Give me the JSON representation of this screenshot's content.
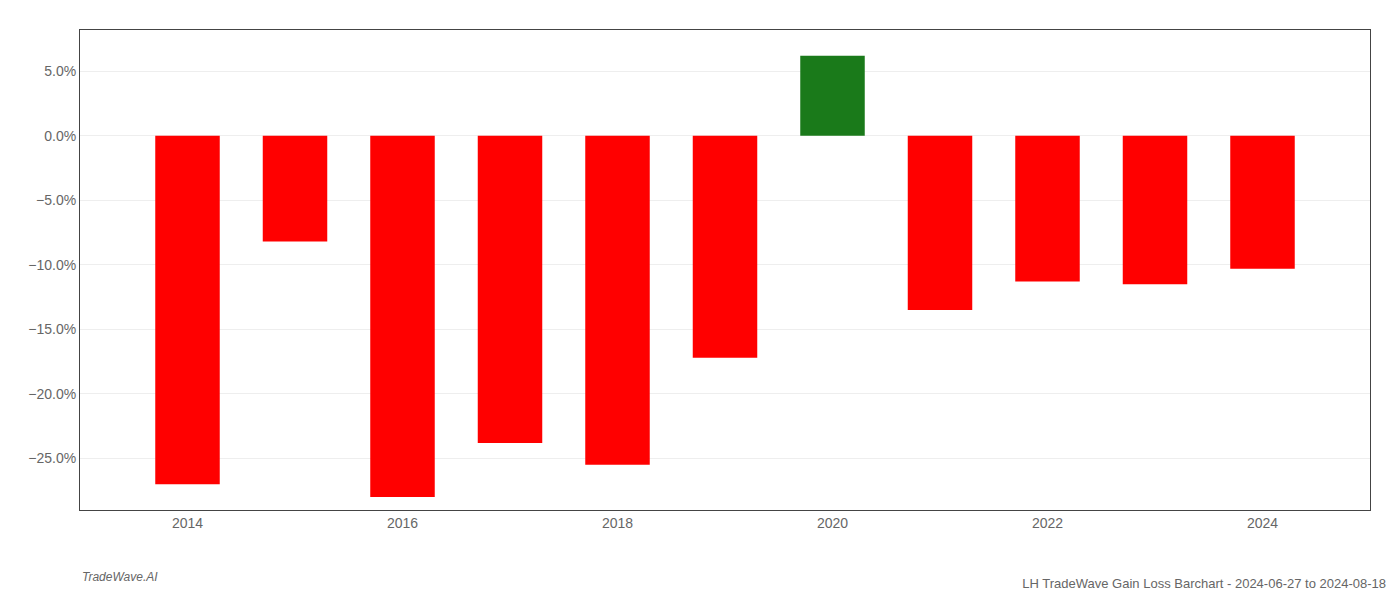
{
  "chart_data": {
    "type": "bar",
    "title": "LH TradeWave Gain Loss Barchart - 2024-06-27 to 2024-08-18",
    "x": [
      2014,
      2015,
      2016,
      2017,
      2018,
      2019,
      2020,
      2021,
      2022,
      2023,
      2024
    ],
    "values": [
      -0.27,
      -0.082,
      -0.28,
      -0.238,
      -0.255,
      -0.172,
      0.062,
      -0.135,
      -0.113,
      -0.115,
      -0.103
    ],
    "colors": [
      "#ff0000",
      "#ff0000",
      "#ff0000",
      "#ff0000",
      "#ff0000",
      "#ff0000",
      "#1a7a1a",
      "#ff0000",
      "#ff0000",
      "#ff0000",
      "#ff0000"
    ],
    "xlim": [
      2013,
      2025
    ],
    "xticks": [
      2014,
      2016,
      2018,
      2020,
      2022,
      2024
    ],
    "ylim": [
      -0.29,
      0.082
    ],
    "yticks": [
      {
        "value": -0.25,
        "label": "−25.0%"
      },
      {
        "value": -0.2,
        "label": "−20.0%"
      },
      {
        "value": -0.15,
        "label": "−15.0%"
      },
      {
        "value": -0.1,
        "label": "−10.0%"
      },
      {
        "value": -0.05,
        "label": "−5.0%"
      },
      {
        "value": 0.0,
        "label": "0.0%"
      },
      {
        "value": 0.05,
        "label": "5.0%"
      }
    ],
    "grid": true,
    "annotations": [
      {
        "text": "TradeWave.AI"
      }
    ]
  }
}
